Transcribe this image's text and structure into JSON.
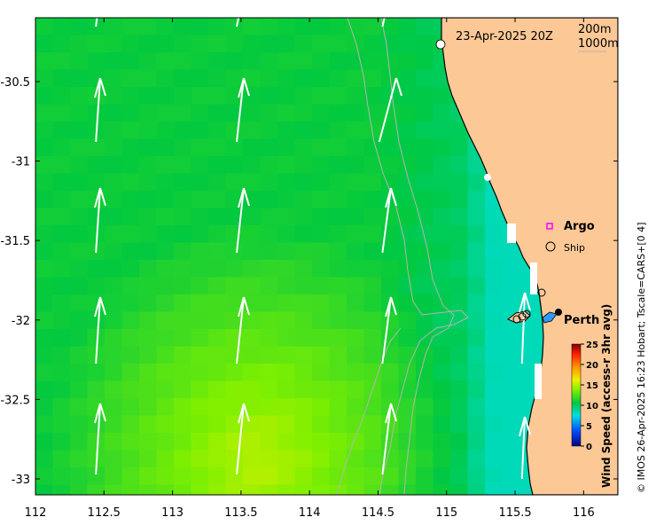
{
  "map": {
    "date_label": "23-Apr-2025 20Z",
    "contour_labels": [
      "200m",
      "1000m"
    ],
    "x_ticks": [
      "112",
      "112.5",
      "113",
      "113.5",
      "114",
      "114.5",
      "115",
      "115.5",
      "116"
    ],
    "y_ticks": [
      "-30.5",
      "-31",
      "-31.5",
      "-32",
      "-32.5",
      "-33"
    ],
    "legend": {
      "argo": "Argo",
      "ship": "Ship",
      "argo_color": "#ff00ff"
    },
    "city": "Perth",
    "colorbar": {
      "label": "Wind Speed (access-r 3hr avg)",
      "ticks": [
        "25",
        "20",
        "15",
        "10",
        "5",
        "0"
      ],
      "min": 0,
      "max": 25
    },
    "credit": "© IMOS 26-Apr-2025 16:23 Hobart; Tscale=CARS+[0 4]",
    "colors": {
      "land": "#fcc896",
      "arrow": "#ffffff",
      "contour": "#b4b4b4"
    }
  }
}
